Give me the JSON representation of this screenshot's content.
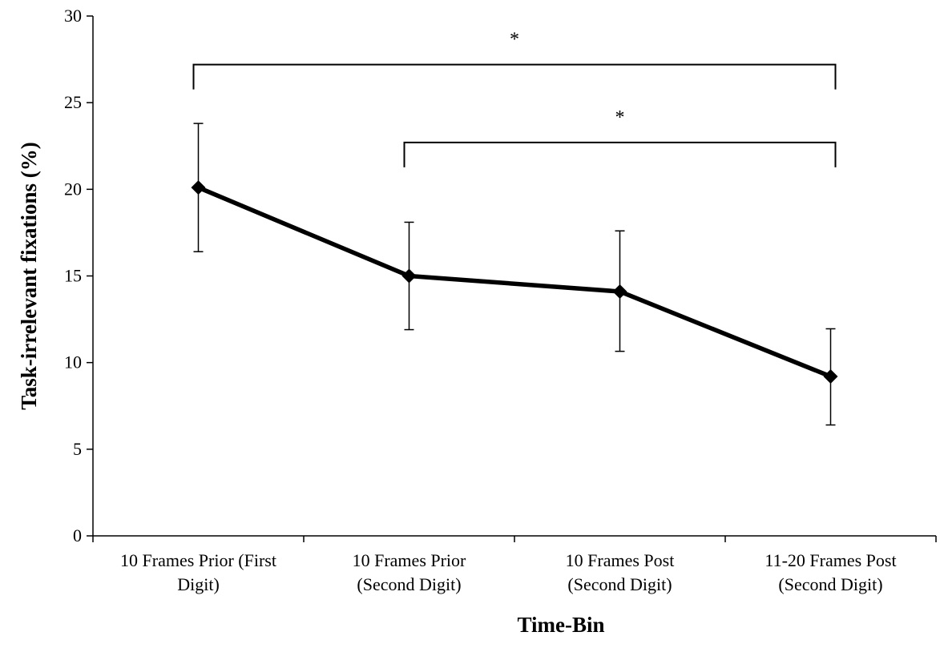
{
  "chart_data": {
    "type": "line",
    "title": "",
    "xlabel": "Time-Bin",
    "ylabel": "Task-irrelevant fixations (%)",
    "ylim": [
      0,
      30
    ],
    "yticks": [
      0,
      5,
      10,
      15,
      20,
      25,
      30
    ],
    "categories": [
      [
        "10 Frames Prior (First",
        "Digit)"
      ],
      [
        "10 Frames Prior",
        "(Second Digit)"
      ],
      [
        "10 Frames Post",
        "(Second Digit)"
      ],
      [
        "11-20 Frames Post",
        "(Second Digit)"
      ]
    ],
    "series": [
      {
        "values": [
          20.1,
          15.0,
          14.1,
          9.2
        ],
        "error_upper": [
          3.7,
          3.1,
          3.5,
          2.75
        ],
        "error_lower": [
          3.7,
          3.1,
          3.45,
          2.8
        ],
        "color": "#000000",
        "marker": "diamond"
      }
    ],
    "significance": [
      {
        "from": 0,
        "to": 3,
        "level": 27.2,
        "label": "*"
      },
      {
        "from": 1,
        "to": 3,
        "level": 22.7,
        "label": "*"
      }
    ],
    "grid": false,
    "legend": "none"
  }
}
